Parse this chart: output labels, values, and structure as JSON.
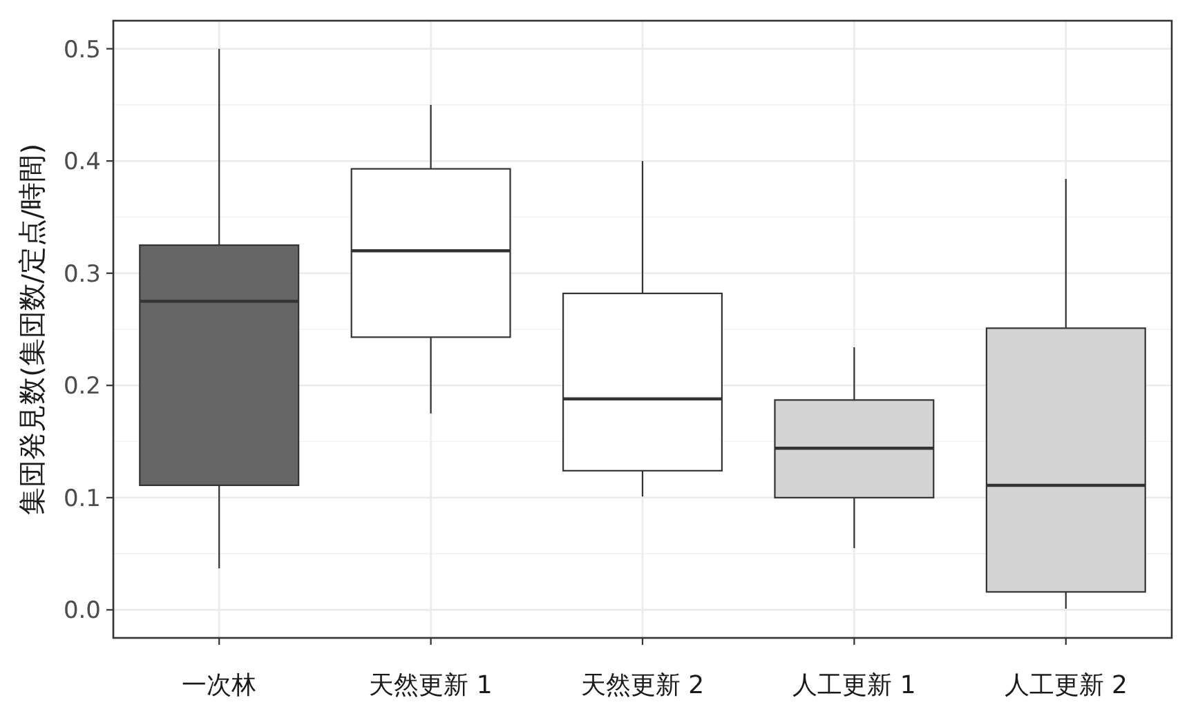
{
  "chart_data": {
    "type": "box",
    "ylabel": "集団発見数(集団数/定点/時間)",
    "categories": [
      "一次林",
      "天然更新 1",
      "天然更新 2",
      "人工更新 1",
      "人工更新 2"
    ],
    "boxes": [
      {
        "low": 0.037,
        "q1": 0.111,
        "median": 0.275,
        "q3": 0.325,
        "high": 0.5
      },
      {
        "low": 0.175,
        "q1": 0.243,
        "median": 0.32,
        "q3": 0.393,
        "high": 0.45
      },
      {
        "low": 0.101,
        "q1": 0.124,
        "median": 0.188,
        "q3": 0.282,
        "high": 0.4
      },
      {
        "low": 0.055,
        "q1": 0.1,
        "median": 0.144,
        "q3": 0.187,
        "high": 0.234
      },
      {
        "low": 0.001,
        "q1": 0.016,
        "median": 0.111,
        "q3": 0.251,
        "high": 0.384
      }
    ],
    "colors": [
      "#666666",
      "#ffffff",
      "#ffffff",
      "#d3d3d3",
      "#d3d3d3"
    ],
    "ylim": [
      -0.025,
      0.525
    ],
    "yticks": [
      {
        "value": 0,
        "label": "0.0"
      },
      0.1,
      0.2,
      0.3,
      0.4,
      0.5
    ],
    "grid": true
  }
}
